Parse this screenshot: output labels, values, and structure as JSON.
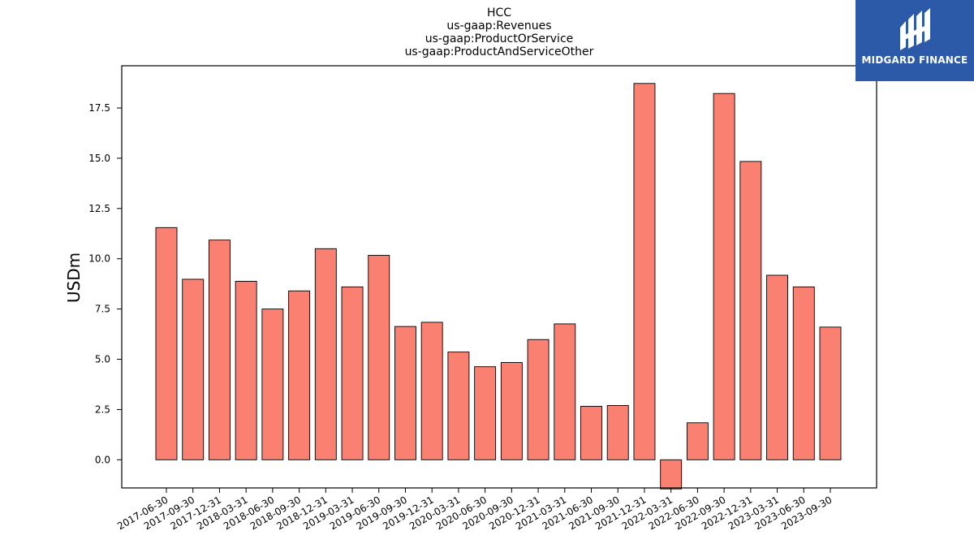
{
  "chart_data": {
    "type": "bar",
    "title_lines": [
      "HCC",
      "us-gaap:Revenues",
      "us-gaap:ProductOrService",
      "us-gaap:ProductAndServiceOther"
    ],
    "ylabel": "USDm",
    "xlabel": "",
    "ylim": [
      -1.4,
      19.6
    ],
    "yticks": [
      0.0,
      2.5,
      5.0,
      7.5,
      10.0,
      12.5,
      15.0,
      17.5
    ],
    "ytick_labels": [
      "0.0",
      "2.5",
      "5.0",
      "7.5",
      "10.0",
      "12.5",
      "15.0",
      "17.5"
    ],
    "categories": [
      "2017-06-30",
      "2017-09-30",
      "2017-12-31",
      "2018-03-31",
      "2018-06-30",
      "2018-09-30",
      "2018-12-31",
      "2019-03-31",
      "2019-06-30",
      "2019-09-30",
      "2019-12-31",
      "2020-03-31",
      "2020-06-30",
      "2020-09-30",
      "2020-12-31",
      "2021-03-31",
      "2021-06-30",
      "2021-09-30",
      "2021-12-31",
      "2022-03-31",
      "2022-06-30",
      "2022-09-30",
      "2022-12-31",
      "2023-03-31",
      "2023-06-30",
      "2023-09-30"
    ],
    "values": [
      11.55,
      8.98,
      10.93,
      8.88,
      7.5,
      8.4,
      10.5,
      8.6,
      10.17,
      6.63,
      6.84,
      5.36,
      4.63,
      4.84,
      5.98,
      6.76,
      2.66,
      2.7,
      18.72,
      -1.45,
      1.84,
      18.22,
      14.84,
      9.18,
      8.6,
      6.6
    ],
    "bar_color": "#fa8072",
    "edge_color": "#000000",
    "grid": false,
    "legend": "none"
  },
  "logo": {
    "text": "MIDGARD FINANCE",
    "background": "#2c5aa8",
    "color": "#ffffff"
  }
}
